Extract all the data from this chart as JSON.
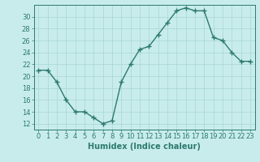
{
  "x": [
    0,
    1,
    2,
    3,
    4,
    5,
    6,
    7,
    8,
    9,
    10,
    11,
    12,
    13,
    14,
    15,
    16,
    17,
    18,
    19,
    20,
    21,
    22,
    23
  ],
  "y": [
    21,
    21,
    19,
    16,
    14,
    14,
    13,
    12,
    12.5,
    19,
    22,
    24.5,
    25,
    27,
    29,
    31,
    31.5,
    31,
    31,
    26.5,
    26,
    24,
    22.5,
    22.5
  ],
  "line_color": "#2d7a6e",
  "marker": "+",
  "marker_size": 4,
  "line_width": 1.0,
  "bg_color": "#c8ecec",
  "grid_color": "#aad4d4",
  "tick_color": "#2d7a6e",
  "xlabel": "Humidex (Indice chaleur)",
  "xlabel_fontsize": 7,
  "xlabel_weight": "bold",
  "tick_fontsize": 6,
  "ylim": [
    11,
    32
  ],
  "yticks": [
    12,
    14,
    16,
    18,
    20,
    22,
    24,
    26,
    28,
    30
  ],
  "xlim": [
    -0.5,
    23.5
  ]
}
